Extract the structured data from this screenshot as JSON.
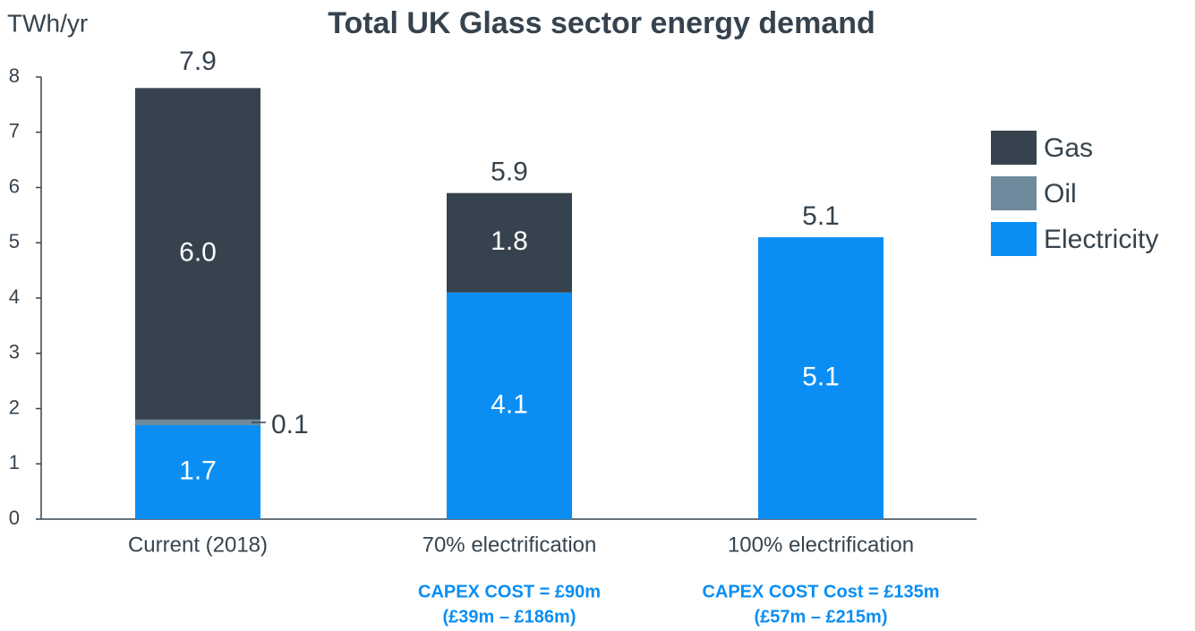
{
  "chart_data": {
    "type": "stacked_bar",
    "title": "Total UK Glass sector energy demand",
    "y_label": "TWh/yr",
    "categories": [
      "Current (2018)",
      "70% electrification",
      "100% electrification"
    ],
    "series": [
      {
        "name": "Electricity",
        "color": "#0b8ef3",
        "values": [
          1.7,
          4.1,
          5.1
        ],
        "value_labels": [
          "1.7",
          "4.1",
          "5.1"
        ]
      },
      {
        "name": "Oil",
        "color": "#6e8a9c",
        "values": [
          0.1,
          null,
          null
        ],
        "value_labels": [
          "0.1",
          null,
          null
        ]
      },
      {
        "name": "Gas",
        "color": "#36434e",
        "values": [
          6,
          1.8,
          null
        ],
        "value_labels": [
          "6.0",
          "1.8",
          null
        ]
      }
    ],
    "totals": [
      7.9,
      5.9,
      5.1
    ],
    "category_notes": [
      null,
      [
        "CAPEX COST = £90m",
        "(£39m – £186m)"
      ],
      [
        "CAPEX COST Cost = £135m",
        "(£57m – £215m)"
      ]
    ],
    "ylim": [
      0,
      8
    ],
    "yticks": [
      0,
      1,
      2,
      3,
      4,
      5,
      6,
      7,
      8
    ],
    "legend": "right"
  }
}
